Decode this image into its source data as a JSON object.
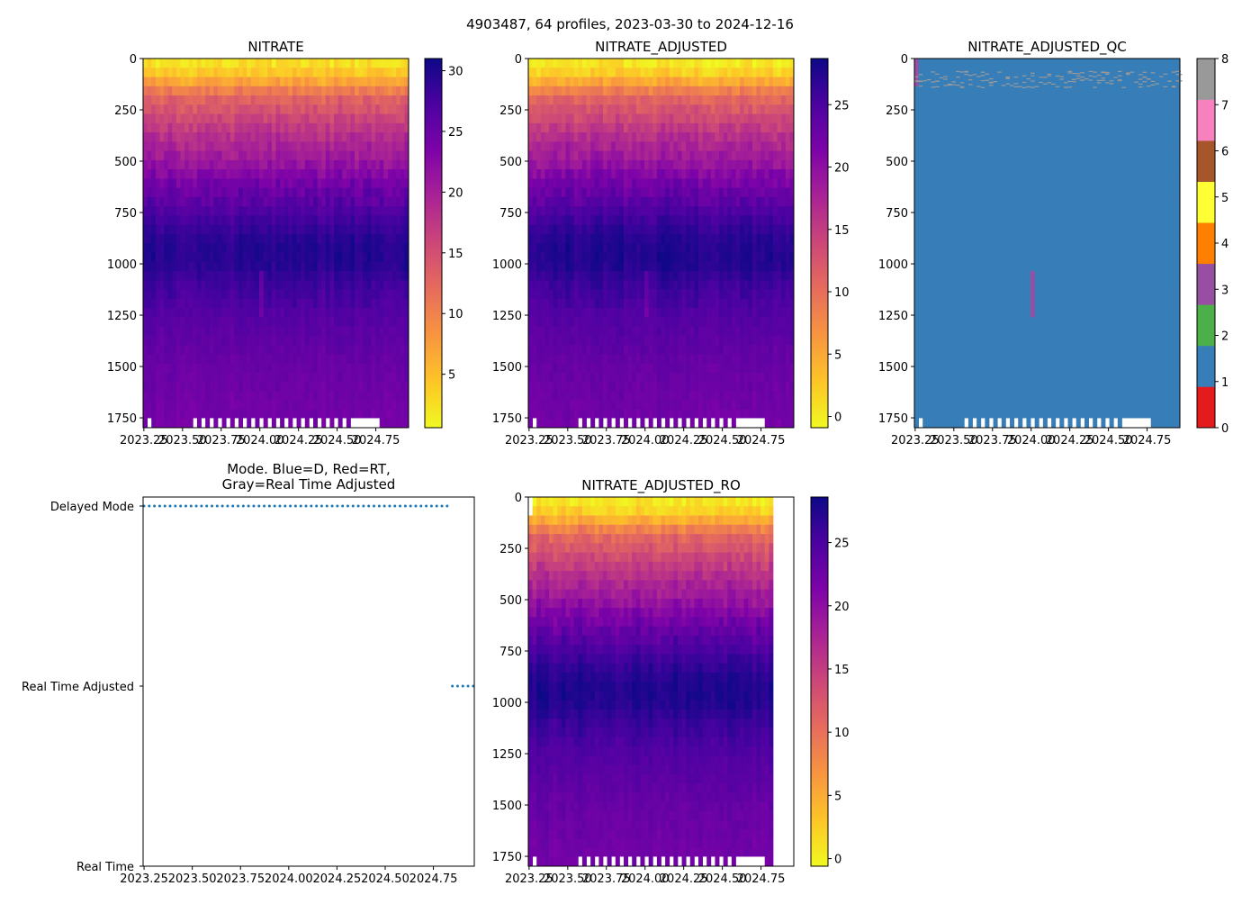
{
  "suptitle": "4903487, 64 profiles, 2023-03-30 to 2024-12-16",
  "chart_data": [
    {
      "type": "heatmap",
      "id": "nitrate",
      "title": "NITRATE",
      "xlim": [
        2023.245,
        2024.962
      ],
      "ylim": [
        1798,
        0
      ],
      "xticks": [
        "2023.25",
        "2023.50",
        "2023.75",
        "2024.00",
        "2024.25",
        "2024.50",
        "2024.75"
      ],
      "yticks": [
        "0",
        "250",
        "500",
        "750",
        "1000",
        "1250",
        "1500",
        "1750"
      ],
      "colormap": "plasma_r",
      "clim": [
        0.6,
        31
      ],
      "cbar_ticks": [
        "5",
        "10",
        "15",
        "20",
        "25",
        "30"
      ],
      "n_profiles": 64,
      "mean_profile_depth": [
        0,
        50,
        100,
        150,
        200,
        300,
        400,
        500,
        600,
        700,
        800,
        900,
        1000,
        1100,
        1250,
        1500,
        1800
      ],
      "mean_profile_value": [
        2,
        3,
        6,
        10,
        13,
        16,
        19,
        21,
        24,
        26,
        28,
        29.5,
        29.5,
        28,
        26.5,
        25,
        24
      ]
    },
    {
      "type": "heatmap",
      "id": "nitrate_adjusted",
      "title": "NITRATE_ADJUSTED",
      "xlim": [
        2023.245,
        2024.962
      ],
      "ylim": [
        1798,
        0
      ],
      "xticks": [
        "2023.25",
        "2023.50",
        "2023.75",
        "2024.00",
        "2024.25",
        "2024.50",
        "2024.75"
      ],
      "yticks": [
        "0",
        "250",
        "500",
        "750",
        "1000",
        "1250",
        "1500",
        "1750"
      ],
      "colormap": "plasma_r",
      "clim": [
        -0.9,
        28.7
      ],
      "cbar_ticks": [
        "0",
        "5",
        "10",
        "15",
        "20",
        "25"
      ],
      "n_profiles": 64,
      "mean_profile_depth": [
        0,
        50,
        100,
        150,
        200,
        300,
        400,
        500,
        600,
        700,
        800,
        900,
        1000,
        1100,
        1250,
        1500,
        1800
      ],
      "mean_profile_value": [
        0,
        1,
        4,
        8,
        11,
        14,
        17,
        19,
        22,
        24,
        26,
        27.5,
        27.5,
        26,
        24.5,
        23,
        22
      ]
    },
    {
      "type": "heatmap",
      "id": "nitrate_adjusted_qc",
      "title": "NITRATE_ADJUSTED_QC",
      "xlim": [
        2023.245,
        2024.962
      ],
      "ylim": [
        1798,
        0
      ],
      "xticks": [
        "2023.25",
        "2023.50",
        "2023.75",
        "2024.00",
        "2024.25",
        "2024.50",
        "2024.75"
      ],
      "yticks": [
        "0",
        "250",
        "500",
        "750",
        "1000",
        "1250",
        "1500",
        "1750"
      ],
      "colormap": "Set1",
      "clim": [
        0,
        8
      ],
      "cbar_ticks": [
        "0",
        "1",
        "2",
        "3",
        "4",
        "5",
        "6",
        "7",
        "8"
      ],
      "qc_colors": [
        "#e41a1c",
        "#377eb8",
        "#4daf4a",
        "#984ea3",
        "#ff7f00",
        "#ffff33",
        "#a65628",
        "#f781bf",
        "#999999"
      ],
      "n_profiles": 64,
      "dominant_flag": 1,
      "flag8_depth_range": [
        60,
        140
      ],
      "flag3_regions": [
        {
          "profile": 0,
          "depth": [
            0,
            130
          ]
        },
        {
          "profile": 28,
          "depth": [
            1050,
            1250
          ]
        }
      ]
    },
    {
      "type": "scatter",
      "id": "mode",
      "title": "Mode. Blue=D, Red=RT,\nGray=Real Time Adjusted",
      "title_lines": [
        "Mode. Blue=D, Red=RT,",
        "Gray=Real Time Adjusted"
      ],
      "xlim": [
        2023.245,
        2024.962
      ],
      "xticks": [
        "2023.25",
        "2023.50",
        "2023.75",
        "2024.00",
        "2024.25",
        "2024.50",
        "2024.75"
      ],
      "ylabels": [
        "Delayed Mode",
        "Real Time Adjusted",
        "Real Time"
      ],
      "color": "#1f77b4",
      "counts": {
        "Delayed Mode": 59,
        "Real Time Adjusted": 5,
        "Real Time": 0
      }
    },
    {
      "type": "heatmap",
      "id": "nitrate_adjusted_ro",
      "title": "NITRATE_ADJUSTED_RO",
      "xlim": [
        2023.245,
        2024.962
      ],
      "ylim": [
        1798,
        0
      ],
      "xticks": [
        "2023.25",
        "2023.50",
        "2023.75",
        "2024.00",
        "2024.25",
        "2024.50",
        "2024.75"
      ],
      "yticks": [
        "0",
        "250",
        "500",
        "750",
        "1000",
        "1250",
        "1500",
        "1750"
      ],
      "colormap": "plasma_r",
      "clim": [
        -0.6,
        28.6
      ],
      "cbar_ticks": [
        "0",
        "5",
        "10",
        "15",
        "20",
        "25"
      ],
      "n_profiles": 59,
      "mean_profile_depth": [
        0,
        50,
        100,
        150,
        200,
        300,
        400,
        500,
        600,
        700,
        800,
        900,
        1000,
        1100,
        1250,
        1500,
        1800
      ],
      "mean_profile_value": [
        0,
        1,
        4,
        8,
        11,
        14,
        17,
        19,
        22,
        24,
        26,
        27.5,
        27.5,
        26,
        24.5,
        23,
        22
      ]
    }
  ]
}
